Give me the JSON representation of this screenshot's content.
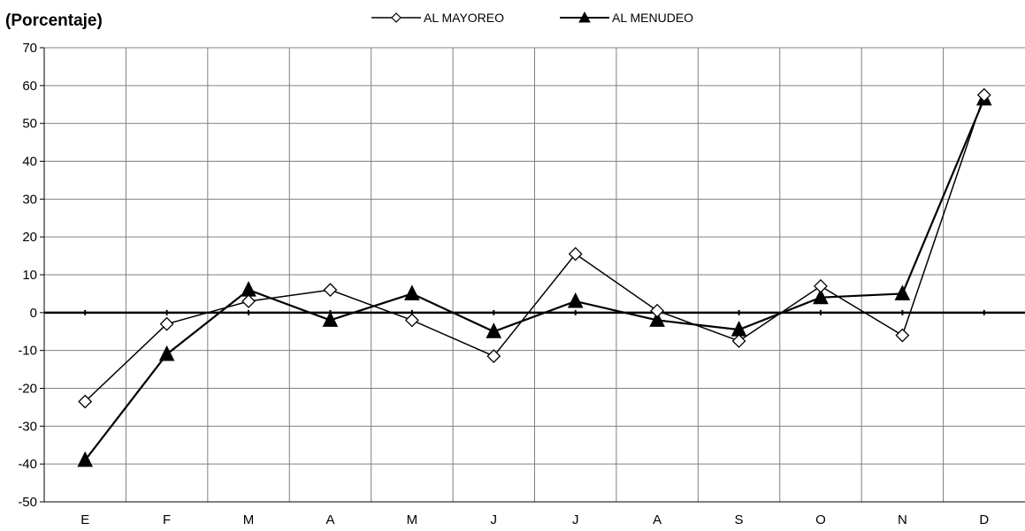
{
  "chart_data": {
    "type": "line",
    "ylabel": "(Porcentaje)",
    "categories": [
      "E",
      "F",
      "M",
      "A",
      "M",
      "J",
      "J",
      "A",
      "S",
      "O",
      "N",
      "D"
    ],
    "yticks": [
      70,
      60,
      50,
      40,
      30,
      20,
      10,
      0,
      -10,
      -20,
      -30,
      -40,
      -50
    ],
    "ylim": [
      -50,
      70
    ],
    "grid": true,
    "legend_position": "top-center",
    "series": [
      {
        "name": "AL MAYOREO",
        "marker": "open-diamond",
        "values": [
          -23.5,
          -3,
          3,
          6,
          -2,
          -11.5,
          15.5,
          0.5,
          -7.5,
          7,
          -6,
          57.5
        ]
      },
      {
        "name": "AL MENUDEO",
        "marker": "filled-triangle",
        "values": [
          -39,
          -11,
          6,
          -2,
          5,
          -5,
          3,
          -2,
          -4.5,
          4,
          5,
          56.5
        ]
      }
    ]
  }
}
